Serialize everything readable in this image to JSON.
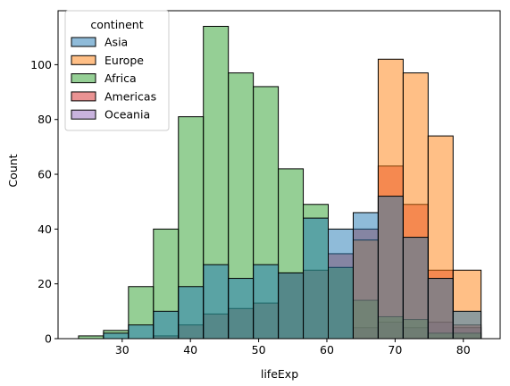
{
  "chart_data": {
    "type": "histogram",
    "xlabel": "lifeExp",
    "ylabel": "Count",
    "xlim": [
      20.6,
      85.4
    ],
    "ylim": [
      0,
      119.7
    ],
    "xticks": [
      30,
      40,
      50,
      60,
      70,
      80
    ],
    "yticks": [
      0,
      20,
      40,
      60,
      80,
      100
    ],
    "bin_edges": [
      23.6,
      27.26,
      30.92,
      34.58,
      38.24,
      41.9,
      45.56,
      49.22,
      52.88,
      56.54,
      60.2,
      63.86,
      67.52,
      71.18,
      74.84,
      78.5,
      82.6
    ],
    "legend": {
      "title": "continent",
      "position": "upper-left"
    },
    "series": [
      {
        "name": "Asia",
        "color": "#1f77b4",
        "values": [
          0,
          2,
          5,
          10,
          19,
          27,
          22,
          27,
          24,
          44,
          40,
          46,
          52,
          37,
          22,
          10
        ]
      },
      {
        "name": "Europe",
        "color": "#ff7f0e",
        "values": [
          0,
          0,
          0,
          0,
          0,
          0,
          0,
          0,
          0,
          0,
          0,
          36,
          102,
          97,
          74,
          25
        ]
      },
      {
        "name": "Africa",
        "color": "#2ca02c",
        "values": [
          1,
          3,
          19,
          40,
          81,
          114,
          97,
          92,
          62,
          49,
          26,
          14,
          8,
          7,
          2,
          2
        ]
      },
      {
        "name": "Americas",
        "color": "#d62728",
        "values": [
          0,
          0,
          0,
          1,
          5,
          9,
          11,
          13,
          24,
          25,
          31,
          40,
          63,
          49,
          25,
          5
        ]
      },
      {
        "name": "Oceania",
        "color": "#9467bd",
        "values": [
          0,
          0,
          0,
          0,
          0,
          0,
          0,
          0,
          0,
          0,
          0,
          4,
          6,
          4,
          6,
          4
        ]
      }
    ]
  }
}
